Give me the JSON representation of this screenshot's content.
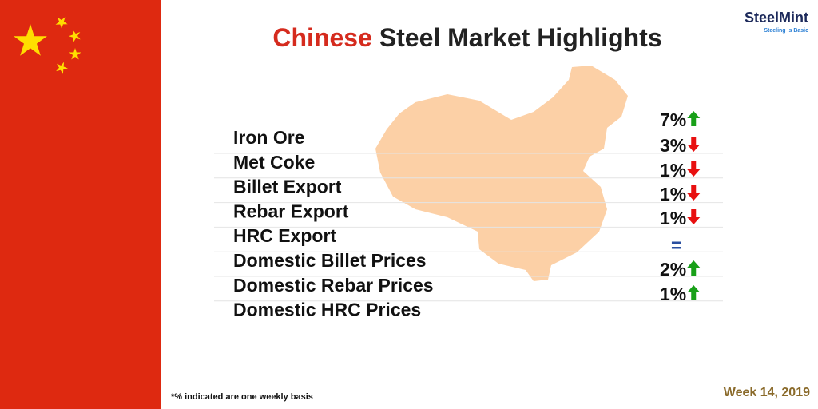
{
  "header": {
    "title_highlight": "Chinese",
    "title_rest": "Steel Market Highlights",
    "logo": "SteelMint",
    "tagline": "Steeling is Basic"
  },
  "items": [
    {
      "label": "Iron Ore",
      "change": "7%",
      "trend": "up"
    },
    {
      "label": "Met Coke",
      "change": "3%",
      "trend": "down"
    },
    {
      "label": "Billet Export",
      "change": "1%",
      "trend": "down"
    },
    {
      "label": "Rebar Export",
      "change": "1%",
      "trend": "down"
    },
    {
      "label": "HRC Export",
      "change": "1%",
      "trend": "down"
    },
    {
      "label": "Domestic Billet Prices",
      "change": "=",
      "trend": "flat"
    },
    {
      "label": "Domestic Rebar Prices",
      "change": "2%",
      "trend": "up"
    },
    {
      "label": "Domestic HRC Prices",
      "change": "1%",
      "trend": "up"
    }
  ],
  "footer": {
    "note": "*% indicated are one weekly basis",
    "week": "Week 14, 2019"
  }
}
